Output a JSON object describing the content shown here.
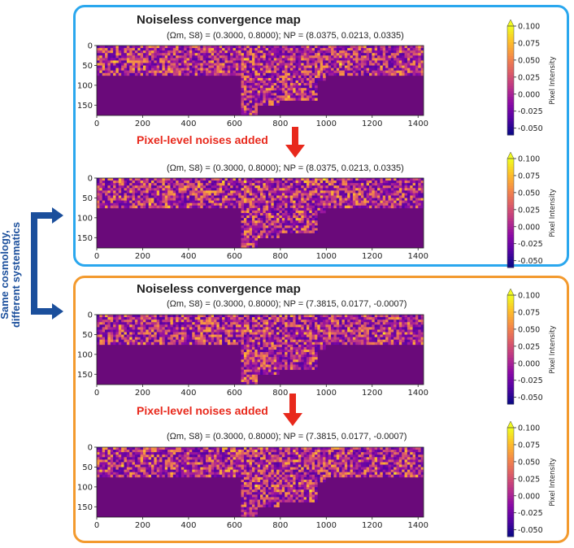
{
  "colors": {
    "blue_box": "#2aa7ee",
    "orange_box": "#f39a2e",
    "arrow_red": "#e8291c",
    "bracket_navy": "#1b4f9c",
    "mask": "#6a0a7a"
  },
  "side_label": {
    "line1": "Same cosmology,",
    "line2": "different systematics"
  },
  "groups": [
    {
      "title": "Noiseless convergence map",
      "noise_label": "Pixel-level noises added",
      "panels": [
        {
          "subtitle": "(Ωm, S8) = (0.3000, 0.8000); NP = (8.0375, 0.0213, 0.0335)"
        },
        {
          "subtitle": "(Ωm, S8) = (0.3000, 0.8000); NP = (8.0375, 0.0213, 0.0335)"
        }
      ]
    },
    {
      "title": "Noiseless convergence map",
      "noise_label": "Pixel-level noises added",
      "panels": [
        {
          "subtitle": "(Ωm, S8) = (0.3000, 0.8000); NP = (7.3815, 0.0177, -0.0007)"
        },
        {
          "subtitle": "(Ωm, S8) = (0.3000, 0.8000); NP = (7.3815, 0.0177, -0.0007)"
        }
      ]
    }
  ],
  "chart_data": {
    "type": "heatmap",
    "x_ticks": [
      "0",
      "200",
      "400",
      "600",
      "800",
      "1000",
      "1200",
      "1400"
    ],
    "y_ticks": [
      "0",
      "50",
      "100",
      "150"
    ],
    "xlim": [
      0,
      1424
    ],
    "ylim": [
      176,
      0
    ],
    "colorbar": {
      "label": "Pixel Intensity",
      "ticks": [
        "0.100",
        "0.075",
        "0.050",
        "0.025",
        "0.000",
        "-0.025",
        "-0.050"
      ],
      "range": [
        -0.06,
        0.1
      ],
      "colormap": "plasma"
    }
  }
}
